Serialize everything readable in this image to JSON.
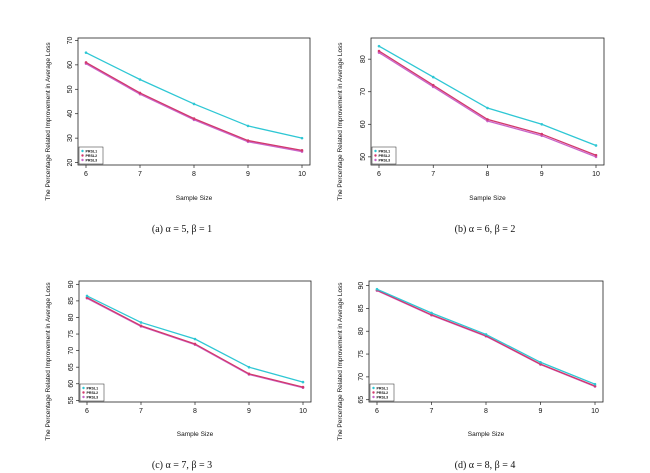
{
  "chart_data": [
    {
      "type": "line",
      "caption": "(a) α = 5, β = 1",
      "xlabel": "Sample Size",
      "ylabel": "The Percentage Related Improvement in Average Loss",
      "x": [
        6,
        7,
        8,
        9,
        10
      ],
      "xlim": [
        6,
        10
      ],
      "ylim": [
        19,
        71
      ],
      "yticks": [
        20,
        30,
        40,
        50,
        60,
        70
      ],
      "legend_position": "bottom-left",
      "series": [
        {
          "name": "PRSL1",
          "color": "#2ec7d4",
          "values": [
            65,
            54,
            44,
            35,
            30
          ]
        },
        {
          "name": "PRSL2",
          "color": "#d2386c",
          "values": [
            61,
            48.5,
            38,
            29,
            25
          ]
        },
        {
          "name": "PRSL3",
          "color": "#c964c9",
          "values": [
            60.5,
            48,
            37.5,
            28.5,
            24.5
          ]
        }
      ]
    },
    {
      "type": "line",
      "caption": "(b) α = 6, β = 2",
      "xlabel": "Sample Size",
      "ylabel": "The Percentage Related Improvement in Average Loss",
      "x": [
        6,
        7,
        8,
        9,
        10
      ],
      "xlim": [
        6,
        10
      ],
      "ylim": [
        47.5,
        86.5
      ],
      "yticks": [
        50,
        60,
        70,
        80
      ],
      "legend_position": "bottom-left",
      "series": [
        {
          "name": "PRSL1",
          "color": "#2ec7d4",
          "values": [
            84,
            74.5,
            65,
            60,
            53.5
          ]
        },
        {
          "name": "PRSL2",
          "color": "#d2386c",
          "values": [
            82.5,
            72,
            61.5,
            57,
            50.5
          ]
        },
        {
          "name": "PRSL3",
          "color": "#c964c9",
          "values": [
            82,
            71.5,
            61,
            56.5,
            50
          ]
        }
      ]
    },
    {
      "type": "line",
      "caption": "(c) α = 7, β = 3",
      "xlabel": "Sample Size",
      "ylabel": "The Percentage Related Improvement in Average Loss",
      "x": [
        6,
        7,
        8,
        9,
        10
      ],
      "xlim": [
        6,
        10
      ],
      "ylim": [
        54.5,
        91
      ],
      "yticks": [
        55,
        60,
        65,
        70,
        75,
        80,
        85,
        90
      ],
      "legend_position": "bottom-left",
      "series": [
        {
          "name": "PRSL1",
          "color": "#2ec7d4",
          "values": [
            86.5,
            78.5,
            73.5,
            65,
            60.5
          ]
        },
        {
          "name": "PRSL2",
          "color": "#d2386c",
          "values": [
            86,
            77.5,
            72,
            63,
            59
          ]
        },
        {
          "name": "PRSL3",
          "color": "#c964c9",
          "values": [
            85.8,
            77.3,
            71.8,
            62.8,
            58.8
          ]
        }
      ]
    },
    {
      "type": "line",
      "caption": "(d) α = 8, β = 4",
      "xlabel": "Sample Size",
      "ylabel": "The Percentage Related Improvement in Average Loss",
      "x": [
        6,
        7,
        8,
        9,
        10
      ],
      "xlim": [
        6,
        10
      ],
      "ylim": [
        64.5,
        91
      ],
      "yticks": [
        65,
        70,
        75,
        80,
        85,
        90
      ],
      "legend_position": "bottom-left",
      "series": [
        {
          "name": "PRSL1",
          "color": "#2ec7d4",
          "values": [
            89.2,
            84,
            79.3,
            73.2,
            68.4
          ]
        },
        {
          "name": "PRSL2",
          "color": "#d2386c",
          "values": [
            89,
            83.6,
            79,
            72.8,
            68
          ]
        },
        {
          "name": "PRSL3",
          "color": "#c964c9",
          "values": [
            88.9,
            83.5,
            78.9,
            72.7,
            67.9
          ]
        }
      ]
    }
  ]
}
